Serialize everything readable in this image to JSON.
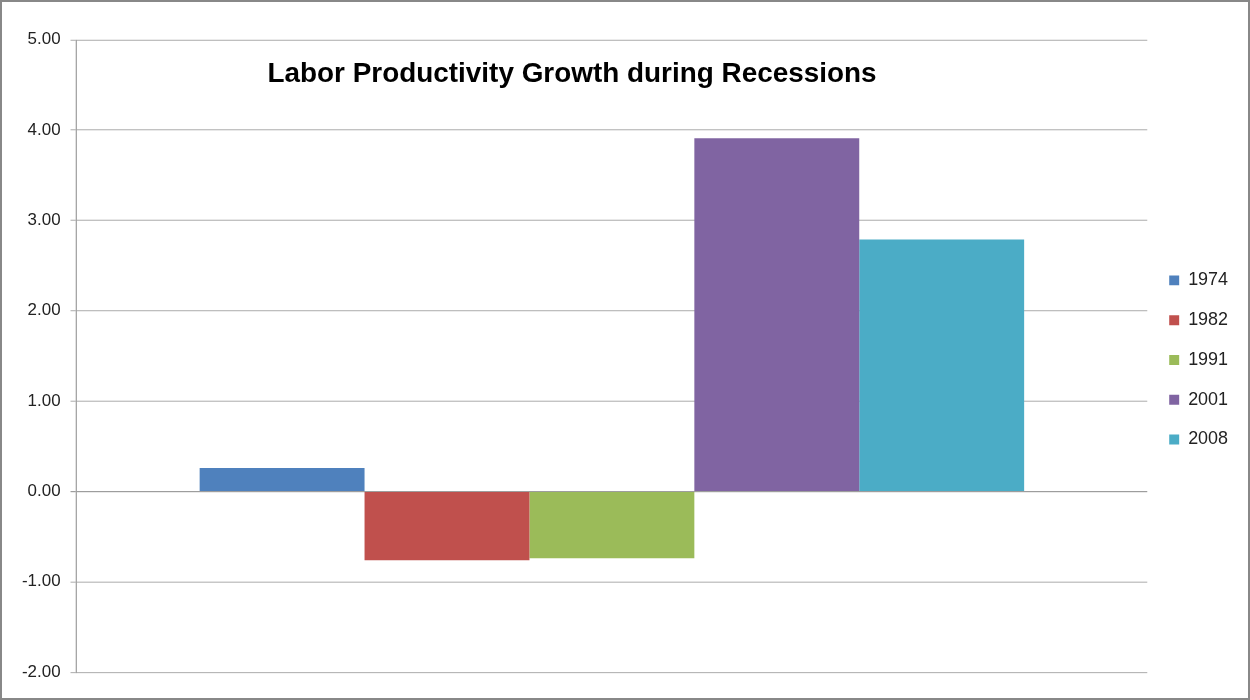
{
  "chart_data": {
    "type": "bar",
    "title": "Labor Productivity Growth during Recessions",
    "categories": [
      null
    ],
    "series": [
      {
        "name": "1974",
        "color": "#4f81bd",
        "values": [
          0.26
        ]
      },
      {
        "name": "1982",
        "color": "#c0504d",
        "values": [
          -0.76
        ]
      },
      {
        "name": "1991",
        "color": "#9bbb59",
        "values": [
          -0.74
        ]
      },
      {
        "name": "2001",
        "color": "#8064a2",
        "values": [
          3.91
        ]
      },
      {
        "name": "2008",
        "color": "#4bacc6",
        "values": [
          2.79
        ]
      }
    ],
    "ylim": [
      -2,
      5
    ],
    "yticks": [
      {
        "value": -2,
        "label": "-2.00"
      },
      {
        "value": -1,
        "label": "-1.00"
      },
      {
        "value": 0,
        "label": "0.00"
      },
      {
        "value": 1,
        "label": "1.00"
      },
      {
        "value": 2,
        "label": "2.00"
      },
      {
        "value": 3,
        "label": "3.00"
      },
      {
        "value": 4,
        "label": "4.00"
      },
      {
        "value": 5,
        "label": "5.00"
      }
    ],
    "grid": "y",
    "legend": "right",
    "tick_labels": "y"
  }
}
